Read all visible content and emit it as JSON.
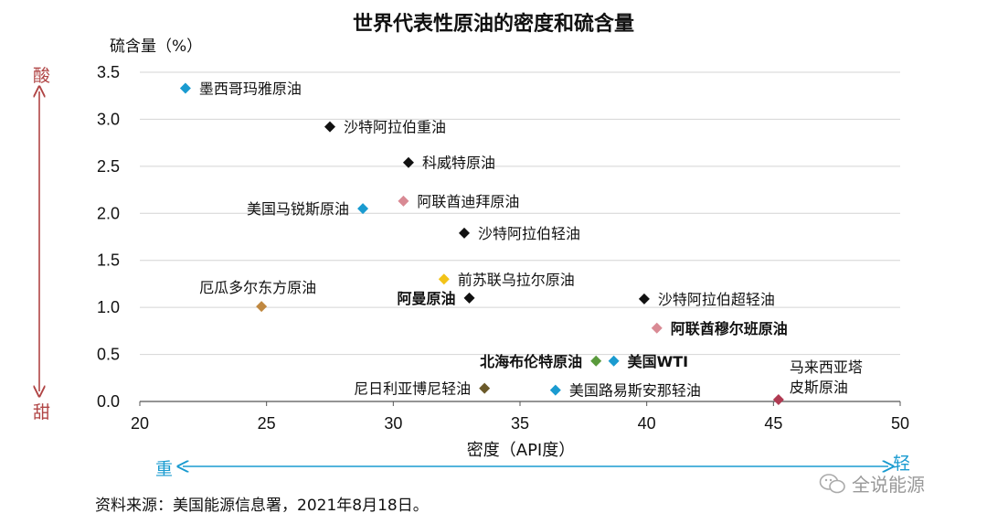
{
  "chart_data": {
    "type": "scatter",
    "title": "世界代表性原油的密度和硫含量",
    "xlabel": "密度（API度）",
    "ylabel": "硫含量（%）",
    "xlim": [
      20,
      50
    ],
    "ylim": [
      0,
      3.5
    ],
    "xticks": [
      "20",
      "25",
      "30",
      "35",
      "40",
      "45",
      "50"
    ],
    "yticks": [
      "0.0",
      "0.5",
      "1.0",
      "1.5",
      "2.0",
      "2.5",
      "3.0",
      "3.5"
    ],
    "grid": "horizontal",
    "points": [
      {
        "name": "墨西哥玛雅原油",
        "x": 21.8,
        "y": 3.33,
        "color": "#1a9bd0",
        "bold": false,
        "label_pos": "right"
      },
      {
        "name": "沙特阿拉伯重油",
        "x": 27.5,
        "y": 2.92,
        "color": "#111111",
        "bold": false,
        "label_pos": "right"
      },
      {
        "name": "科威特原油",
        "x": 30.6,
        "y": 2.54,
        "color": "#111111",
        "bold": false,
        "label_pos": "right"
      },
      {
        "name": "美国马锐斯原油",
        "x": 28.8,
        "y": 2.05,
        "color": "#1a9bd0",
        "bold": false,
        "label_pos": "left"
      },
      {
        "name": "阿联酋迪拜原油",
        "x": 30.4,
        "y": 2.13,
        "color": "#d98a94",
        "bold": false,
        "label_pos": "right"
      },
      {
        "name": "沙特阿拉伯轻油",
        "x": 32.8,
        "y": 1.79,
        "color": "#111111",
        "bold": false,
        "label_pos": "right"
      },
      {
        "name": "前苏联乌拉尔原油",
        "x": 32.0,
        "y": 1.3,
        "color": "#f2c318",
        "bold": false,
        "label_pos": "right"
      },
      {
        "name": "阿曼原油",
        "x": 33.0,
        "y": 1.1,
        "color": "#111111",
        "bold": true,
        "label_pos": "left"
      },
      {
        "name": "沙特阿拉伯超轻油",
        "x": 39.9,
        "y": 1.09,
        "color": "#111111",
        "bold": false,
        "label_pos": "right"
      },
      {
        "name": "厄瓜多尔东方原油",
        "x": 24.8,
        "y": 1.01,
        "color": "#c08840",
        "bold": false,
        "label_pos": "top"
      },
      {
        "name": "阿联酋穆尔班原油",
        "x": 40.4,
        "y": 0.78,
        "color": "#d98a94",
        "bold": true,
        "label_pos": "right"
      },
      {
        "name": "北海布伦特原油",
        "x": 38.0,
        "y": 0.43,
        "color": "#5a9a3c",
        "bold": true,
        "label_pos": "left"
      },
      {
        "name": "美国WTI",
        "x": 38.7,
        "y": 0.43,
        "color": "#1a9bd0",
        "bold": true,
        "label_pos": "right"
      },
      {
        "name": "尼日利亚博尼轻油",
        "x": 33.6,
        "y": 0.14,
        "color": "#6b5a2a",
        "bold": false,
        "label_pos": "left"
      },
      {
        "name": "美国路易斯安那轻油",
        "x": 36.4,
        "y": 0.12,
        "color": "#1a9bd0",
        "bold": false,
        "label_pos": "right"
      },
      {
        "name": "马来西亚塔皮斯原油",
        "x": 45.2,
        "y": 0.02,
        "color": "#b03a52",
        "bold": false,
        "label_pos": "top-right",
        "label_lines": [
          "马来西亚塔",
          "皮斯原油"
        ]
      }
    ]
  },
  "annotations": {
    "acid": "酸",
    "sweet": "甜",
    "heavy": "重",
    "light": "轻"
  },
  "source": "资料来源：美国能源信息署，2021年8月18日。",
  "watermark": "全说能源"
}
